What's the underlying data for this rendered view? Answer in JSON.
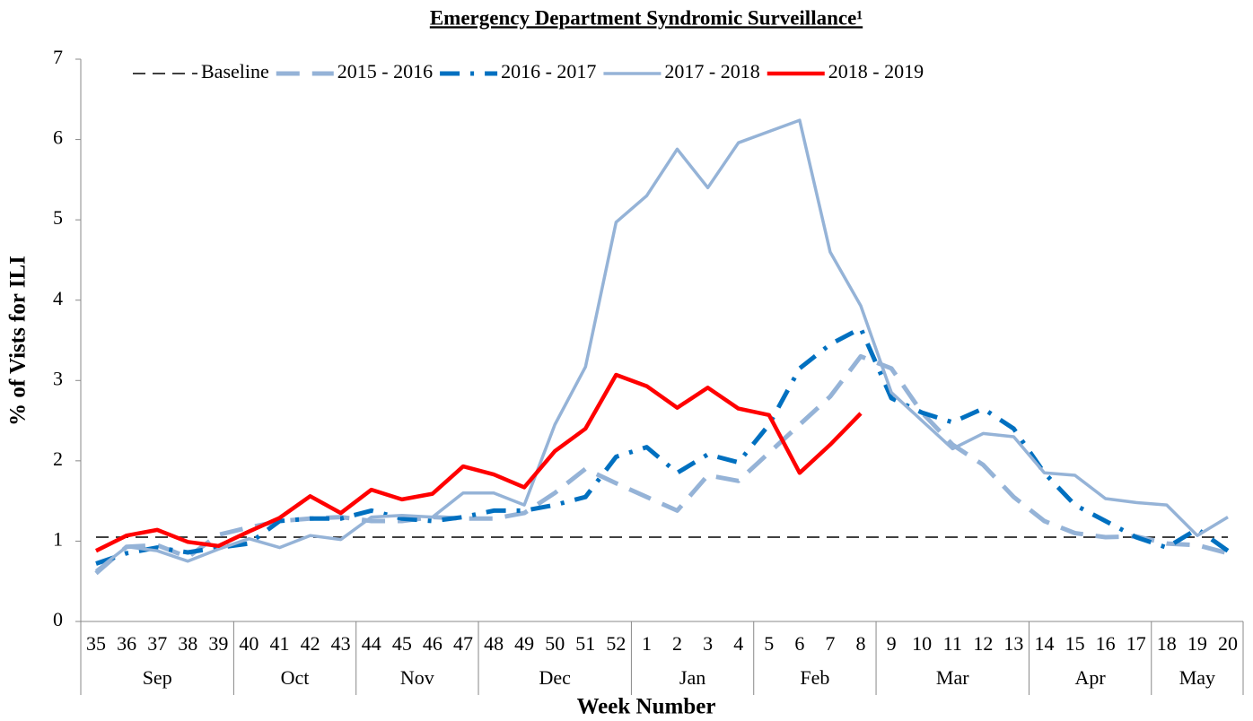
{
  "chart_data": {
    "type": "line",
    "title": "Emergency Department Syndromic Surveillance¹",
    "y_label": "% of Vists for ILI",
    "x_label": "Week Number",
    "categories": [
      "35",
      "36",
      "37",
      "38",
      "39",
      "40",
      "41",
      "42",
      "43",
      "44",
      "45",
      "46",
      "47",
      "48",
      "49",
      "50",
      "51",
      "52",
      "1",
      "2",
      "3",
      "4",
      "5",
      "6",
      "7",
      "8",
      "9",
      "10",
      "11",
      "12",
      "13",
      "14",
      "15",
      "16",
      "17",
      "18",
      "19",
      "20"
    ],
    "month_groups": [
      {
        "label": "Sep",
        "span": 5
      },
      {
        "label": "Oct",
        "span": 4
      },
      {
        "label": "Nov",
        "span": 4
      },
      {
        "label": "Dec",
        "span": 5
      },
      {
        "label": "Jan",
        "span": 4
      },
      {
        "label": "Feb",
        "span": 4
      },
      {
        "label": "Mar",
        "span": 5
      },
      {
        "label": "Apr",
        "span": 4
      },
      {
        "label": "May",
        "span": 3
      }
    ],
    "ylim": [
      0,
      7
    ],
    "yticks": [
      0,
      1,
      2,
      3,
      4,
      5,
      6,
      7
    ],
    "legend": "top",
    "series": [
      {
        "name": "Baseline",
        "color": "#404040",
        "style": "dashed",
        "values": [
          1.05,
          1.05,
          1.05,
          1.05,
          1.05,
          1.05,
          1.05,
          1.05,
          1.05,
          1.05,
          1.05,
          1.05,
          1.05,
          1.05,
          1.05,
          1.05,
          1.05,
          1.05,
          1.05,
          1.05,
          1.05,
          1.05,
          1.05,
          1.05,
          1.05,
          1.05,
          1.05,
          1.05,
          1.05,
          1.05,
          1.05,
          1.05,
          1.05,
          1.05,
          1.05,
          1.05,
          1.05,
          1.05
        ]
      },
      {
        "name": "2015 - 2016",
        "color": "#95b3d7",
        "style": "long-dash",
        "values": [
          0.6,
          0.93,
          0.95,
          0.8,
          1.08,
          1.17,
          1.25,
          1.28,
          1.3,
          1.25,
          1.25,
          1.3,
          1.28,
          1.28,
          1.35,
          1.6,
          1.9,
          1.72,
          1.55,
          1.38,
          1.82,
          1.75,
          2.1,
          2.45,
          2.8,
          3.3,
          3.15,
          2.6,
          2.2,
          1.95,
          1.55,
          1.25,
          1.1,
          1.05,
          1.06,
          0.97,
          0.95,
          0.85
        ]
      },
      {
        "name": "2016 - 2017",
        "color": "#0070c0",
        "style": "dash-dot",
        "values": [
          0.72,
          0.85,
          0.92,
          0.86,
          0.92,
          0.97,
          1.25,
          1.28,
          1.28,
          1.38,
          1.28,
          1.25,
          1.3,
          1.38,
          1.38,
          1.45,
          1.55,
          2.05,
          2.17,
          1.85,
          2.08,
          1.98,
          2.45,
          3.15,
          3.45,
          3.65,
          2.78,
          2.6,
          2.48,
          2.65,
          2.4,
          1.85,
          1.45,
          1.25,
          1.05,
          0.92,
          1.15,
          0.88
        ]
      },
      {
        "name": "2017 - 2018",
        "color": "#95b3d7",
        "style": "solid",
        "values": [
          0.63,
          0.93,
          0.88,
          0.75,
          0.9,
          1.03,
          0.92,
          1.07,
          1.02,
          1.3,
          1.32,
          1.3,
          1.6,
          1.6,
          1.45,
          2.45,
          3.17,
          4.97,
          5.3,
          5.88,
          5.4,
          5.96,
          6.1,
          6.24,
          4.6,
          3.93,
          2.85,
          2.5,
          2.15,
          2.34,
          2.3,
          1.85,
          1.82,
          1.53,
          1.48,
          1.45,
          1.07,
          1.3
        ]
      },
      {
        "name": "2018 - 2019",
        "color": "#ff0000",
        "style": "solid-bold",
        "values": [
          0.88,
          1.07,
          1.14,
          0.99,
          0.94,
          1.12,
          1.29,
          1.56,
          1.35,
          1.64,
          1.52,
          1.59,
          1.93,
          1.83,
          1.67,
          2.12,
          2.4,
          3.07,
          2.93,
          2.66,
          2.91,
          2.65,
          2.57,
          1.85,
          2.2,
          2.59,
          null,
          null,
          null,
          null,
          null,
          null,
          null,
          null,
          null,
          null,
          null,
          null
        ]
      }
    ]
  }
}
